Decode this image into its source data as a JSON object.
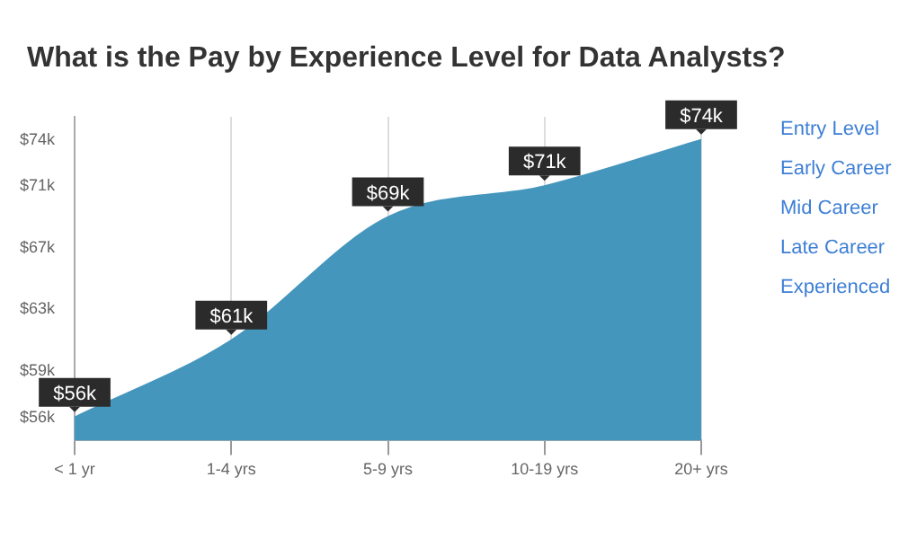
{
  "chart_data": {
    "type": "area",
    "title": "What is the Pay by Experience Level for Data Analysts?",
    "categories": [
      "< 1 yr",
      "1-4 yrs",
      "5-9 yrs",
      "10-19 yrs",
      "20+ yrs"
    ],
    "series": [
      {
        "color": "#4596bd",
        "values": [
          56,
          61,
          69,
          71,
          74
        ],
        "value_labels": [
          "$56k",
          "$61k",
          "$69k",
          "$71k",
          "$74k"
        ]
      }
    ],
    "ylim": [
      54.5,
      75.5
    ],
    "yticks": [
      {
        "value": 56,
        "label": "$56k"
      },
      {
        "value": 59,
        "label": "$59k"
      },
      {
        "value": 63,
        "label": "$63k"
      },
      {
        "value": 67,
        "label": "$67k"
      },
      {
        "value": 71,
        "label": "$71k"
      },
      {
        "value": 74,
        "label": "$74k"
      }
    ],
    "grid": "x",
    "legend": false,
    "marker": "none",
    "annotations": [
      "Entry Level",
      "Early Career",
      "Mid Career",
      "Late Career",
      "Experienced"
    ]
  }
}
